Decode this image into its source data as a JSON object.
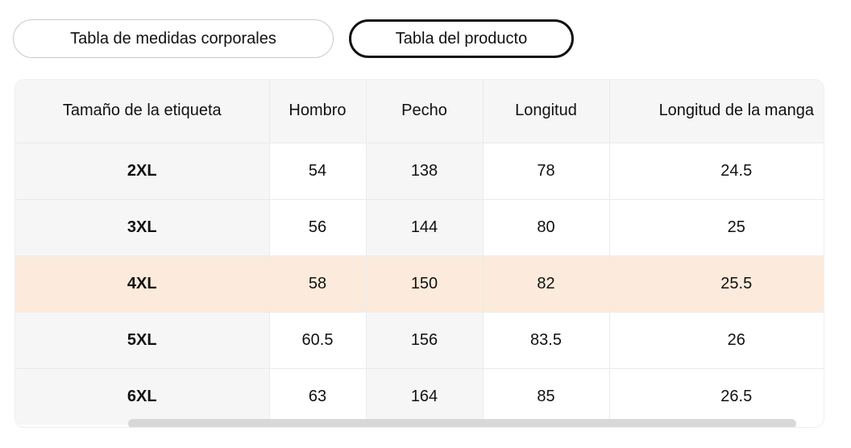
{
  "tabs": [
    {
      "label": "Tabla de medidas corporales",
      "selected": false
    },
    {
      "label": "Tabla del producto",
      "selected": true
    }
  ],
  "table": {
    "columns": [
      "Tamaño de la etiqueta",
      "Hombro",
      "Pecho",
      "Longitud",
      "Longitud de la manga"
    ],
    "rows": [
      {
        "size": "2XL",
        "values": [
          "54",
          "138",
          "78",
          "24.5"
        ],
        "highlighted": false
      },
      {
        "size": "3XL",
        "values": [
          "56",
          "144",
          "80",
          "25"
        ],
        "highlighted": false
      },
      {
        "size": "4XL",
        "values": [
          "58",
          "150",
          "82",
          "25.5"
        ],
        "highlighted": true
      },
      {
        "size": "5XL",
        "values": [
          "60.5",
          "156",
          "83.5",
          "26"
        ],
        "highlighted": false
      },
      {
        "size": "6XL",
        "values": [
          "63",
          "164",
          "85",
          "26.5"
        ],
        "highlighted": false
      }
    ]
  },
  "colors": {
    "text": "#111111",
    "header-bg": "#f6f6f7",
    "stripe-col-bg": "#f6f6f7",
    "highlight": "#fcebdc",
    "divider": "#ebebeb",
    "selected-tab-border": "#111111",
    "unselected-tab-border": "#c9c9c9",
    "scrollbar-thumb": "#d8d8d8"
  }
}
